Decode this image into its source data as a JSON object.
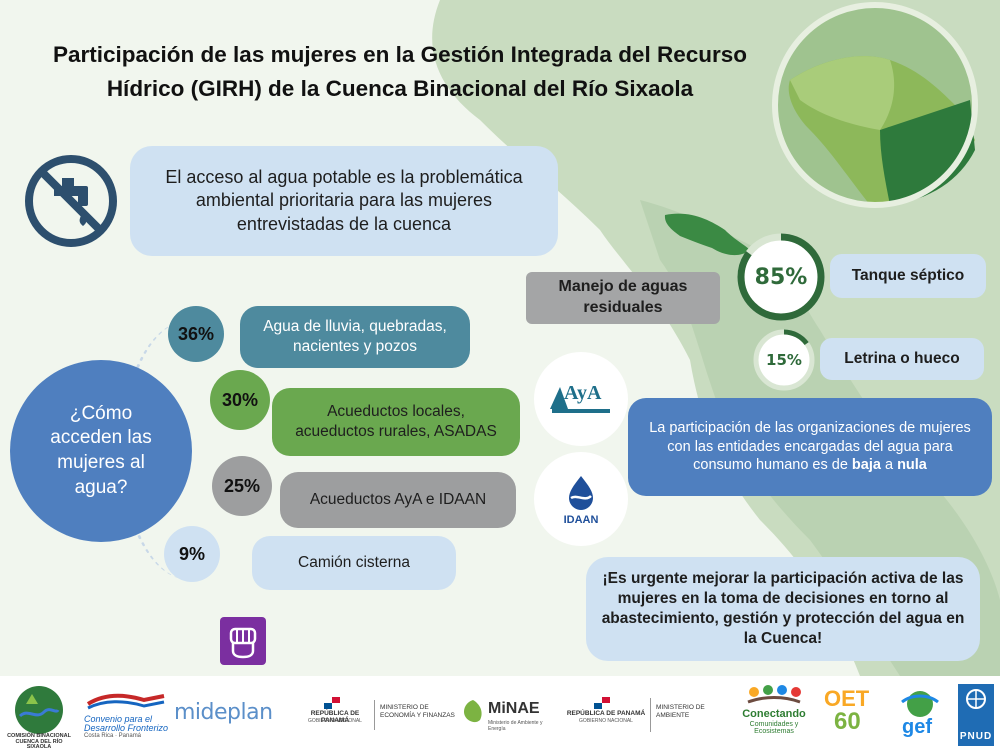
{
  "title": "Participación de las mujeres en la Gestión Integrada del Recurso Hídrico (GIRH) de la Cuenca Binacional del Río Sixaola",
  "main_statement": "El acceso al agua potable es la problemática ambiental prioritaria para las mujeres entrevistadas de la cuenca",
  "access_question": "¿Cómo acceden las mujeres al agua?",
  "access_sources": [
    {
      "percent": "36%",
      "label": "Agua de lluvia, quebradas, nacientes y pozos"
    },
    {
      "percent": "30%",
      "label": "Acueductos locales, acueductos rurales, ASADAS"
    },
    {
      "percent": "25%",
      "label": "Acueductos AyA e IDAAN"
    },
    {
      "percent": "9%",
      "label": "Camión cisterna"
    }
  ],
  "wastewater": {
    "title": "Manejo de aguas residuales",
    "items": [
      {
        "percent": "85%",
        "value": 85,
        "label": "Tanque séptico"
      },
      {
        "percent": "15%",
        "value": 15,
        "label": "Letrina o hueco"
      }
    ]
  },
  "participation": {
    "text_before": "La participación de las organizaciones de mujeres con las entidades encargadas del agua para consumo humano es de ",
    "bold1": "baja",
    "middle": " a ",
    "bold2": "nula"
  },
  "urgent": "¡Es urgente mejorar la participación activa de las mujeres en la toma de decisiones en torno al abastecimiento, gestión y protección del agua en la Cuenca!",
  "entity_logos": {
    "aya": "AyA",
    "idaan": "IDAAN"
  },
  "footer_logos": {
    "cuenca": "COMISIÓN BINACIONAL CUENCA DEL RÍO SIXAOLA",
    "convenio": "Convenio para el Desarrollo Fronterizo",
    "convenio_sub": "Costa Rica · Panamá",
    "mideplan": "mideplan",
    "panama_mef": "REPÚBLICA DE PANAMÁ",
    "panama_mef_sub": "GOBIERNO NACIONAL",
    "mef": "MINISTERIO DE ECONOMÍA Y FINANZAS",
    "minae": "MiNAE",
    "minae_sub": "Ministerio de Ambiente y Energía",
    "panama_amb": "REPÚBLICA DE PANAMÁ",
    "panama_amb_sub": "GOBIERNO NACIONAL",
    "ambiente": "MINISTERIO DE AMBIENTE",
    "conectando": "Conectando",
    "conectando_sub": "Comunidades y Ecosistemas",
    "oet": "OET",
    "oet_num": "60",
    "gef": "gef",
    "pnud": "PNUD"
  },
  "colors": {
    "light_blue": "#cfe1f2",
    "teal": "#4e8a9e",
    "green": "#6aa84f",
    "gray": "#9d9e9f",
    "blue": "#4f7fbf",
    "map_green": "#3b8a44",
    "purple": "#7b2fa0"
  }
}
